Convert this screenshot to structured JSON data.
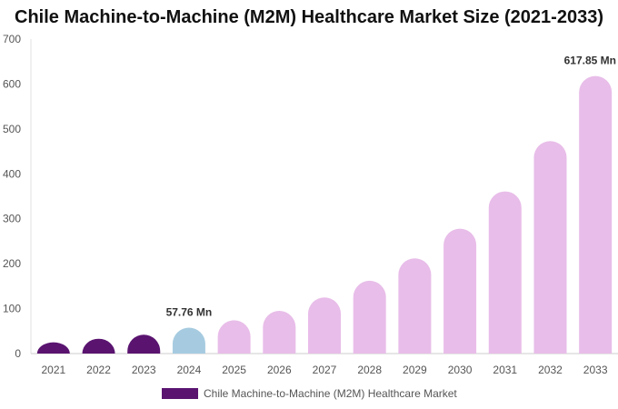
{
  "chart_data": {
    "type": "bar",
    "title": "Chile Machine-to-Machine (M2M) Healthcare Market Size (2021-2033)",
    "categories": [
      "2021",
      "2022",
      "2023",
      "2024",
      "2025",
      "2026",
      "2027",
      "2028",
      "2029",
      "2030",
      "2031",
      "2032",
      "2033"
    ],
    "series": [
      {
        "name": "Chile Machine-to-Machine (M2M) Healthcare Market",
        "values": [
          25,
          33,
          42,
          57.76,
          74,
          95,
          125,
          162,
          212,
          278,
          361,
          473,
          617.85
        ]
      }
    ],
    "ylim": [
      0,
      700
    ],
    "yticks": [
      0,
      100,
      200,
      300,
      400,
      500,
      600,
      700
    ],
    "annotations": [
      {
        "category": "2024",
        "text": "57.76 Mn"
      },
      {
        "category": "2033",
        "text": "617.85 Mn"
      }
    ],
    "colors": {
      "historical": "#5a1470",
      "base_year": "#a6cbe0",
      "forecast": "#e8bde9"
    },
    "bar_color_groups": [
      "historical",
      "historical",
      "historical",
      "base_year",
      "forecast",
      "forecast",
      "forecast",
      "forecast",
      "forecast",
      "forecast",
      "forecast",
      "forecast",
      "forecast"
    ],
    "grid": false,
    "legend": "bottom"
  }
}
